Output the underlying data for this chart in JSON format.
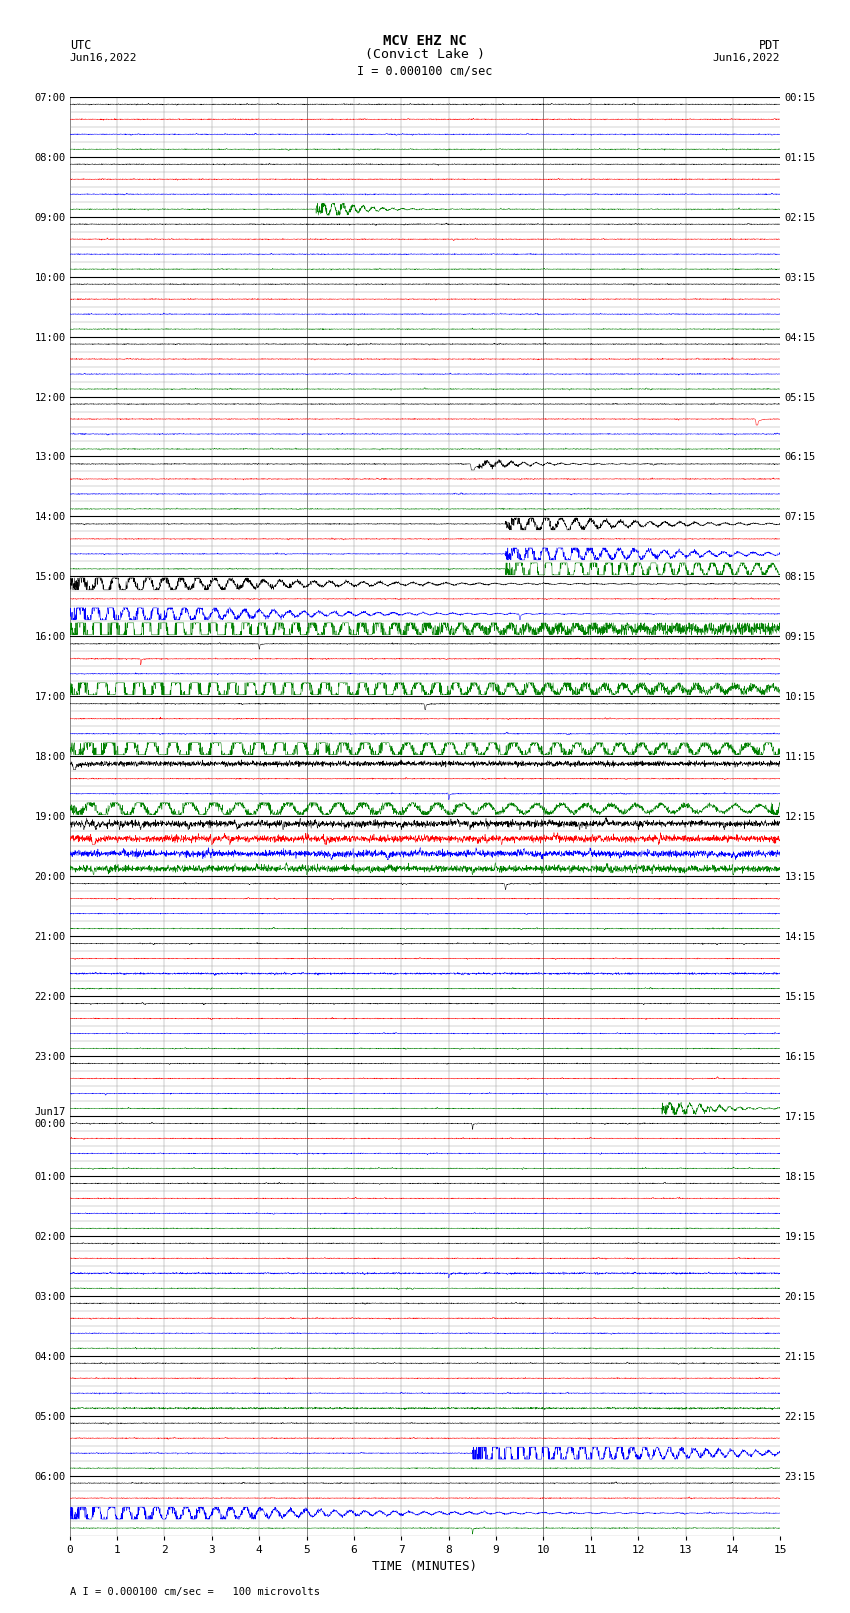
{
  "title_line1": "MCV EHZ NC",
  "title_line2": "(Convict Lake )",
  "scale_text": "I = 0.000100 cm/sec",
  "footer_text": "A I = 0.000100 cm/sec =   100 microvolts",
  "xlabel": "TIME (MINUTES)",
  "left_labels": [
    "07:00",
    "08:00",
    "09:00",
    "10:00",
    "11:00",
    "12:00",
    "13:00",
    "14:00",
    "15:00",
    "16:00",
    "17:00",
    "18:00",
    "19:00",
    "20:00",
    "21:00",
    "22:00",
    "23:00",
    "Jun17\n00:00",
    "01:00",
    "02:00",
    "03:00",
    "04:00",
    "05:00",
    "06:00"
  ],
  "right_labels": [
    "00:15",
    "01:15",
    "02:15",
    "03:15",
    "04:15",
    "05:15",
    "06:15",
    "07:15",
    "08:15",
    "09:15",
    "10:15",
    "11:15",
    "12:15",
    "13:15",
    "14:15",
    "15:15",
    "16:15",
    "17:15",
    "18:15",
    "19:15",
    "20:15",
    "21:15",
    "22:15",
    "23:15"
  ],
  "n_rows": 24,
  "n_cols": 15,
  "bg_color": "#ffffff",
  "grid_color": "#999999",
  "fig_width": 8.5,
  "fig_height": 16.13,
  "dpi": 100
}
